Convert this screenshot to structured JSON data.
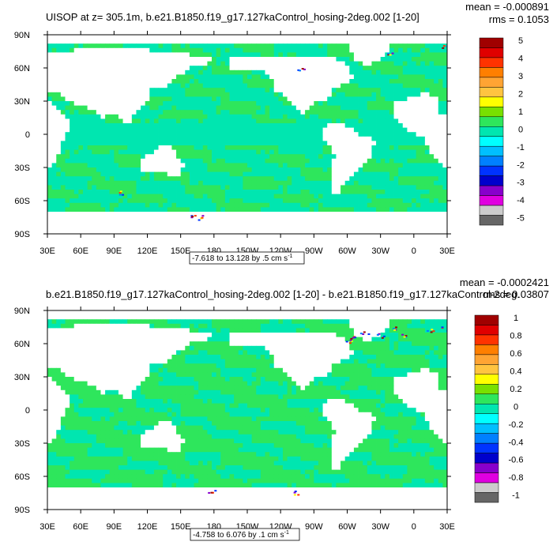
{
  "chart_data": [
    {
      "type": "heatmap",
      "title": "UISOP at z= 305.1m, b.e21.B1850.f19_g17.127kaControl_hosing-2deg.002 [1-20]",
      "stats": [
        "mean = -0.000891",
        "rms = 0.1053"
      ],
      "x_tick_labels": [
        "30E",
        "60E",
        "90E",
        "120E",
        "150E",
        "180",
        "150W",
        "120W",
        "90W",
        "60W",
        "30W",
        "0",
        "30E"
      ],
      "y_tick_labels": [
        "90N",
        "60N",
        "30N",
        "0",
        "30S",
        "60S",
        "90S"
      ],
      "xlim": [
        30,
        390
      ],
      "ylim": [
        -90,
        90
      ],
      "range_label": "-7.618 to 13.128 by .5 cm s",
      "range_sup": "-1",
      "colorbar": {
        "labels": [
          "5",
          "4",
          "3",
          "2",
          "1",
          "0",
          "-1",
          "-2",
          "-3",
          "-4",
          "-5"
        ],
        "colors": [
          "#a00000",
          "#e00000",
          "#ff3300",
          "#ff7f00",
          "#ffa433",
          "#ffc440",
          "#ffff00",
          "#79e000",
          "#2ee65c",
          "#00e6b0",
          "#00ffff",
          "#00bfff",
          "#0080ff",
          "#0033ff",
          "#0000cc",
          "#8800cc",
          "#e000e0",
          "#cccccc",
          "#666666"
        ]
      }
    },
    {
      "type": "heatmap",
      "title": "b.e21.B1850.f19_g17.127kaControl_hosing-2deg.002 [1-20] - b.e21.B1850.f19_g17.127kaControl-2deg.",
      "stats": [
        "mean = -0.0002421",
        "rms = 0.03807"
      ],
      "x_tick_labels": [
        "30E",
        "60E",
        "90E",
        "120E",
        "150E",
        "180",
        "150W",
        "120W",
        "90W",
        "60W",
        "30W",
        "0",
        "30E"
      ],
      "y_tick_labels": [
        "90N",
        "60N",
        "30N",
        "0",
        "30S",
        "60S",
        "90S"
      ],
      "xlim": [
        30,
        390
      ],
      "ylim": [
        -90,
        90
      ],
      "range_label": "-4.758 to 6.076 by .1 cm s",
      "range_sup": "-1",
      "colorbar": {
        "labels": [
          "1",
          "0.8",
          "0.6",
          "0.4",
          "0.2",
          "0",
          "-0.2",
          "-0.4",
          "-0.6",
          "-0.8",
          "-1"
        ],
        "colors": [
          "#a00000",
          "#e00000",
          "#ff3300",
          "#ff7f00",
          "#ffa433",
          "#ffc440",
          "#ffff00",
          "#79e000",
          "#2ee65c",
          "#00e6b0",
          "#00ffff",
          "#00bfff",
          "#0080ff",
          "#0033ff",
          "#0000cc",
          "#8800cc",
          "#e000e0",
          "#cccccc",
          "#666666"
        ]
      }
    }
  ],
  "colors": {
    "field_green": "#2ee65c",
    "field_cyan": "#00e6b0",
    "land": "#ffffff"
  }
}
